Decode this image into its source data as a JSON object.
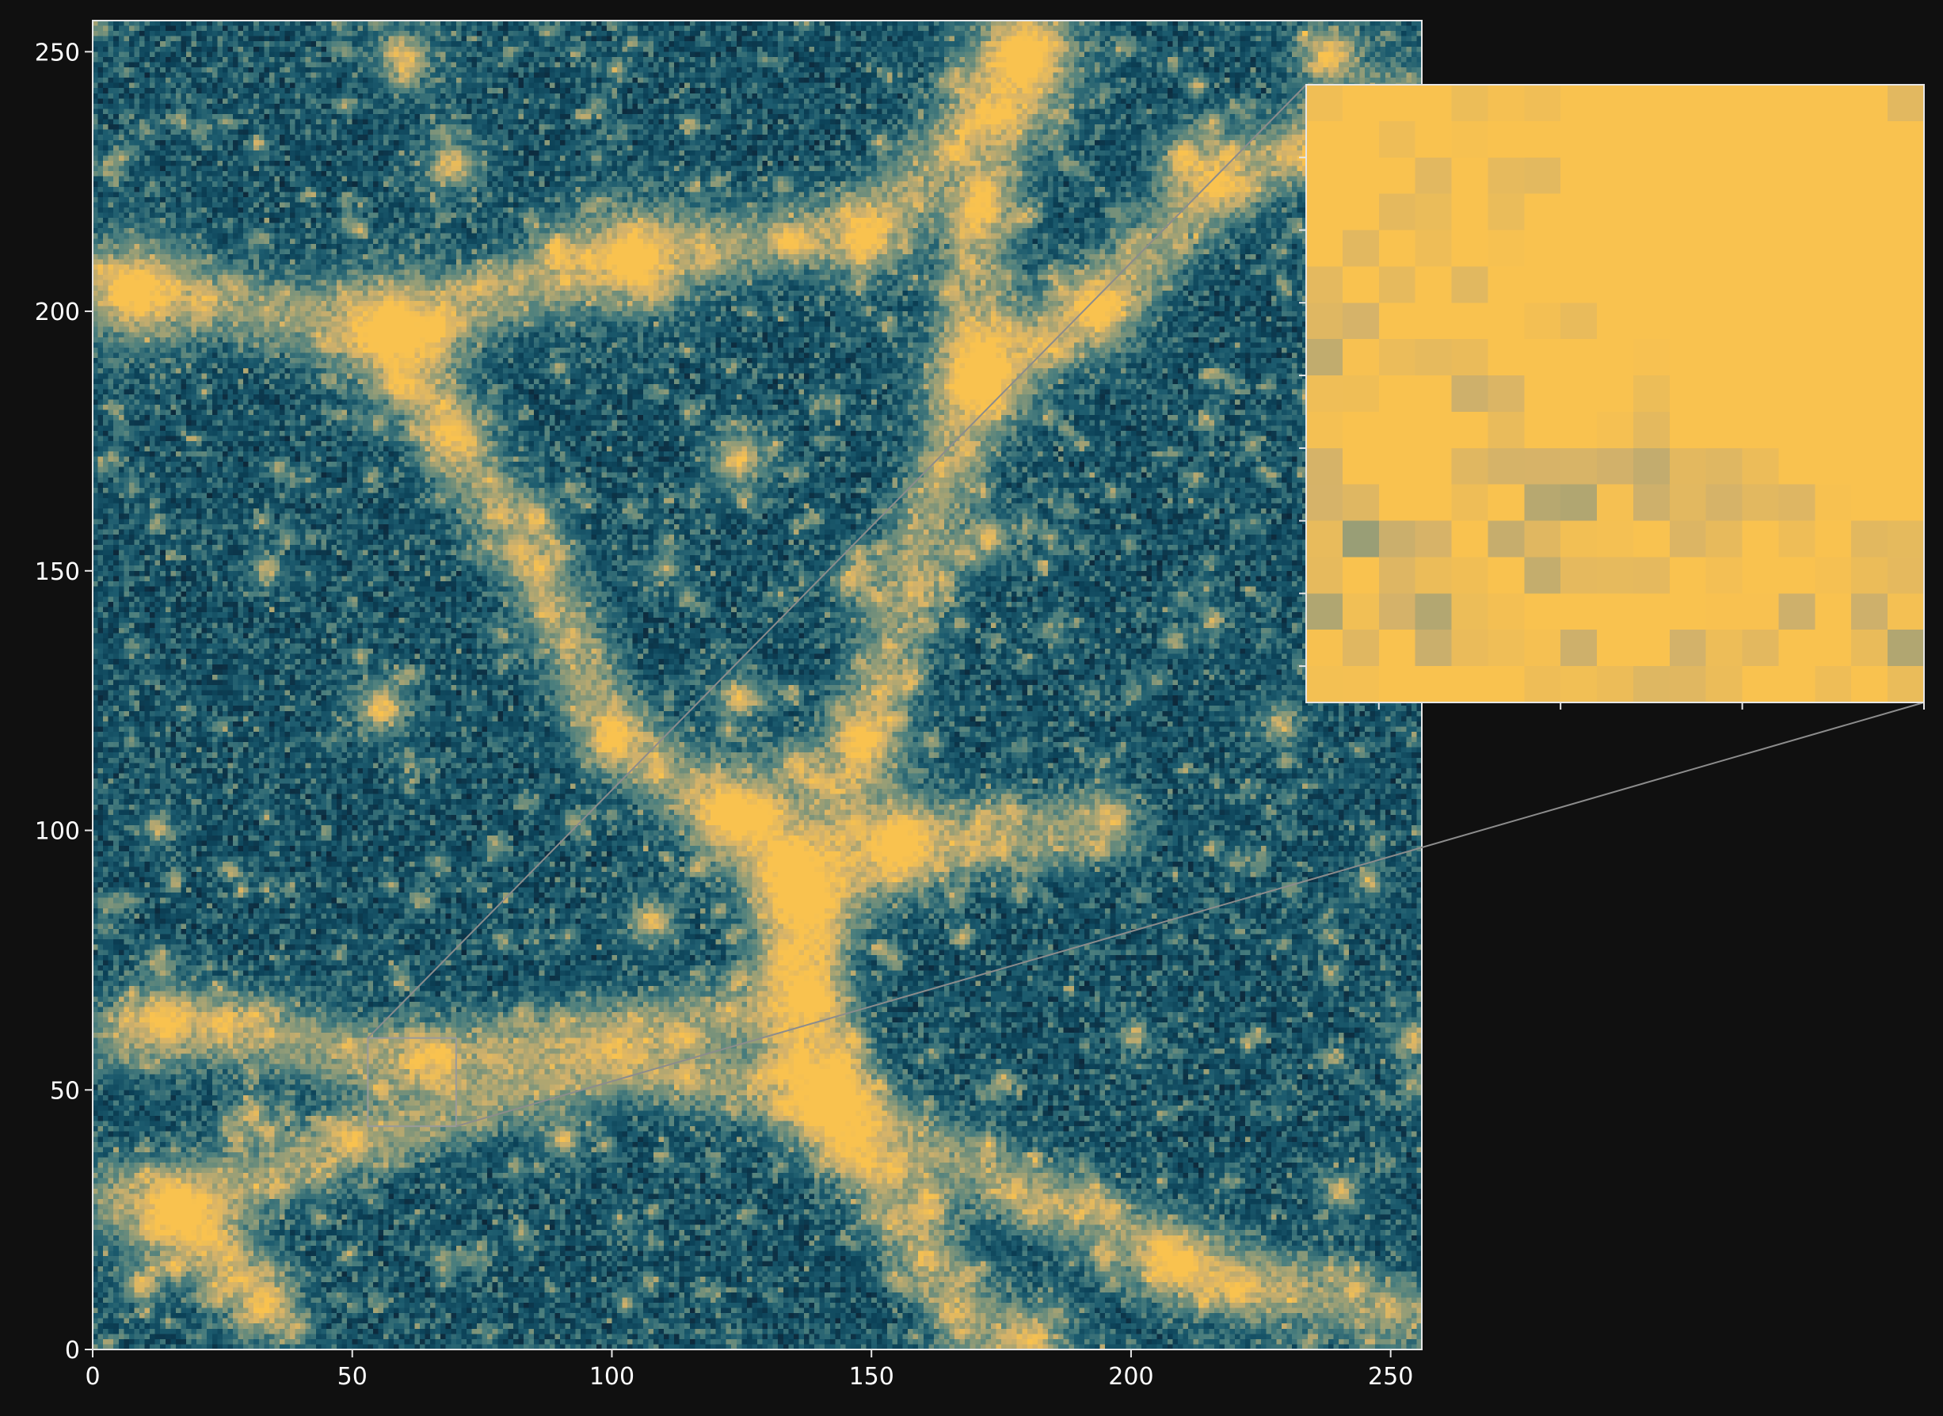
{
  "chart_data": {
    "type": "heatmap",
    "title": "",
    "xlabel": "",
    "ylabel": "",
    "xlim": [
      0,
      256
    ],
    "ylim": [
      0,
      256
    ],
    "x_ticks": [
      0,
      50,
      100,
      150,
      200,
      250
    ],
    "y_ticks": [
      0,
      50,
      100,
      150,
      200,
      250
    ],
    "x_tick_labels": [
      "0",
      "50",
      "100",
      "150",
      "200",
      "250"
    ],
    "y_tick_labels": [
      "0",
      "50",
      "100",
      "150",
      "200",
      "250"
    ],
    "grid": false,
    "colormap": [
      "#000000",
      "#0e2233",
      "#0b4157",
      "#1c5b6e",
      "#4c7f7e",
      "#8f9b78",
      "#d4b26a",
      "#f9c24f"
    ],
    "background_color": "#101010",
    "halos": [
      [
        179,
        249,
        3.2,
        1.0
      ],
      [
        8,
        203,
        3.0,
        0.9
      ],
      [
        57,
        196,
        3.4,
        0.95
      ],
      [
        104,
        210,
        3.2,
        0.9
      ],
      [
        148,
        214,
        2.2,
        0.8
      ],
      [
        170,
        219,
        1.8,
        0.8
      ],
      [
        170,
        187,
        3.0,
        1.0
      ],
      [
        193,
        200,
        2.4,
        0.85
      ],
      [
        216,
        224,
        2.0,
        0.7
      ],
      [
        210,
        229,
        1.8,
        0.6
      ],
      [
        238,
        249,
        2.2,
        0.7
      ],
      [
        234,
        229,
        1.6,
        0.6
      ],
      [
        65,
        195,
        1.6,
        0.6
      ],
      [
        69,
        176,
        1.6,
        0.6
      ],
      [
        69,
        228,
        1.8,
        0.6
      ],
      [
        89,
        211,
        1.6,
        0.6
      ],
      [
        60,
        248,
        2.0,
        0.6
      ],
      [
        124,
        171,
        1.8,
        0.7
      ],
      [
        172,
        156,
        1.6,
        0.6
      ],
      [
        146,
        148,
        1.6,
        0.5
      ],
      [
        55,
        123,
        1.8,
        0.7
      ],
      [
        124,
        125,
        1.6,
        0.6
      ],
      [
        100,
        117,
        1.8,
        0.7
      ],
      [
        148,
        117,
        2.0,
        0.8
      ],
      [
        122,
        103,
        2.6,
        0.9
      ],
      [
        128,
        102,
        2.2,
        0.85
      ],
      [
        135,
        112,
        1.6,
        0.6
      ],
      [
        155,
        97,
        3.0,
        1.0
      ],
      [
        136,
        87,
        2.6,
        1.0
      ],
      [
        134,
        95,
        1.8,
        0.7
      ],
      [
        196,
        102,
        1.6,
        0.5
      ],
      [
        107,
        82,
        1.6,
        0.6
      ],
      [
        137,
        67,
        1.8,
        0.7
      ],
      [
        133,
        75,
        1.6,
        0.6
      ],
      [
        142,
        47,
        2.6,
        1.0
      ],
      [
        145,
        38,
        1.6,
        0.6
      ],
      [
        161,
        27,
        1.6,
        0.5
      ],
      [
        13,
        63,
        2.0,
        0.8
      ],
      [
        25,
        62,
        1.4,
        0.6
      ],
      [
        16,
        26,
        3.0,
        0.9
      ],
      [
        33,
        8,
        2.0,
        0.7
      ],
      [
        9,
        12,
        1.4,
        0.6
      ],
      [
        209,
        16,
        2.2,
        0.8
      ],
      [
        220,
        11,
        1.8,
        0.6
      ],
      [
        254,
        59,
        1.4,
        0.6
      ],
      [
        180,
        1,
        2.6,
        0.7
      ],
      [
        30,
        45,
        1.4,
        0.5
      ],
      [
        66,
        57,
        1.2,
        0.6
      ],
      [
        62,
        55,
        1.2,
        0.7
      ],
      [
        90,
        40,
        1.4,
        0.5
      ],
      [
        240,
        180,
        1.4,
        0.5
      ],
      [
        228,
        120,
        1.4,
        0.5
      ],
      [
        215,
        140,
        1.2,
        0.4
      ],
      [
        33,
        150,
        1.2,
        0.4
      ],
      [
        12,
        100,
        1.2,
        0.4
      ],
      [
        85,
        160,
        1.4,
        0.5
      ],
      [
        110,
        150,
        1.2,
        0.4
      ],
      [
        200,
        60,
        1.2,
        0.4
      ],
      [
        245,
        90,
        1.2,
        0.4
      ],
      [
        240,
        30,
        1.4,
        0.5
      ]
    ],
    "filaments": [
      [
        [
          0,
          205
        ],
        [
          57,
          196
        ],
        [
          104,
          210
        ],
        [
          150,
          215
        ],
        [
          180,
          250
        ]
      ],
      [
        [
          57,
          196
        ],
        [
          68,
          176
        ],
        [
          85,
          150
        ],
        [
          100,
          117
        ],
        [
          122,
          103
        ]
      ],
      [
        [
          180,
          250
        ],
        [
          170,
          219
        ],
        [
          170,
          187
        ],
        [
          158,
          150
        ],
        [
          148,
          117
        ],
        [
          137,
          87
        ],
        [
          142,
          47
        ],
        [
          155,
          25
        ],
        [
          172,
          0
        ]
      ],
      [
        [
          170,
          187
        ],
        [
          193,
          200
        ],
        [
          216,
          224
        ],
        [
          256,
          243
        ]
      ],
      [
        [
          122,
          103
        ],
        [
          136,
          87
        ],
        [
          155,
          97
        ],
        [
          196,
          100
        ]
      ],
      [
        [
          136,
          87
        ],
        [
          134,
          60
        ],
        [
          142,
          47
        ]
      ],
      [
        [
          0,
          60
        ],
        [
          25,
          62
        ],
        [
          55,
          55
        ],
        [
          100,
          60
        ],
        [
          137,
          67
        ]
      ],
      [
        [
          16,
          26
        ],
        [
          50,
          40
        ],
        [
          100,
          55
        ],
        [
          142,
          47
        ]
      ],
      [
        [
          142,
          47
        ],
        [
          180,
          30
        ],
        [
          209,
          16
        ],
        [
          256,
          5
        ]
      ],
      [
        [
          0,
          30
        ],
        [
          16,
          26
        ],
        [
          33,
          8
        ]
      ]
    ],
    "inset": {
      "region_x": [
        53,
        70
      ],
      "region_y": [
        43,
        60
      ],
      "x_ticks": [
        55,
        60,
        65,
        70
      ],
      "y_ticks": [
        44,
        46,
        48,
        50,
        52,
        54,
        56,
        58
      ]
    }
  }
}
